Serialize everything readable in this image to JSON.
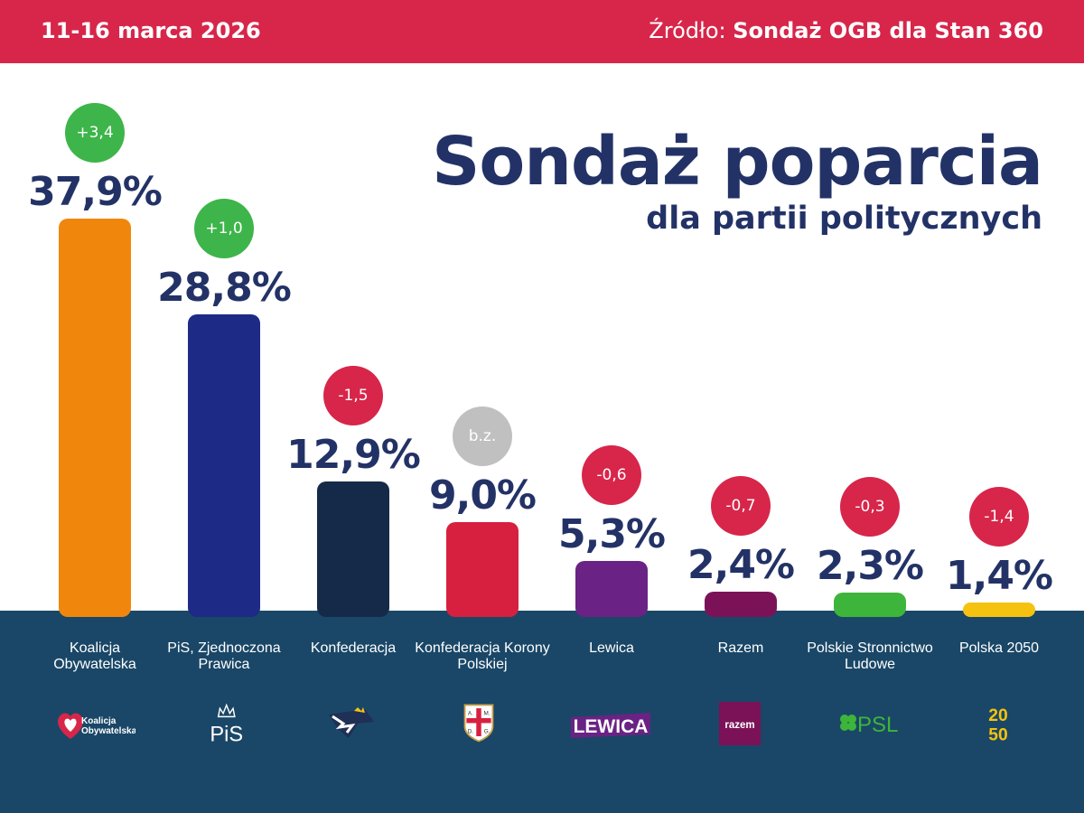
{
  "header": {
    "date": "11-16 marca 2026",
    "source_label": "Źródło:",
    "source_value": "Sondaż OGB dla Stan 360"
  },
  "title": "Sondaż poparcia",
  "subtitle": "dla partii politycznych",
  "colors": {
    "header_bg": "#d7264a",
    "title": "#233266",
    "bottom_panel": "#1a4767",
    "change_up": "#3db54a",
    "change_down": "#d7264a",
    "change_none": "#c0c0c0"
  },
  "chart_data": {
    "type": "bar",
    "title": "Sondaż poparcia",
    "subtitle": "dla partii politycznych",
    "unit": "%",
    "ylim": [
      0,
      37.9
    ],
    "categories": [
      "Koalicja Obywatelska",
      "PiS, Zjednoczona Prawica",
      "Konfederacja",
      "Konfederacja Korony Polskiej",
      "Lewica",
      "Razem",
      "Polskie Stronnictwo Ludowe",
      "Polska 2050"
    ],
    "values": [
      37.9,
      28.8,
      12.9,
      9.0,
      5.3,
      2.4,
      2.3,
      1.4
    ],
    "value_labels": [
      "37,9%",
      "28,8%",
      "12,9%",
      "9,0%",
      "5,3%",
      "2,4%",
      "2,3%",
      "1,4%"
    ],
    "changes": [
      "+3,4",
      "+1,0",
      "-1,5",
      "b.z.",
      "-0,6",
      "-0,7",
      "-0,3",
      "-1,4"
    ],
    "change_direction": [
      "up",
      "up",
      "down",
      "none",
      "down",
      "down",
      "down",
      "down"
    ],
    "bar_colors": [
      "#f0870c",
      "#1d2a86",
      "#152a48",
      "#d7203f",
      "#6a2284",
      "#7b1257",
      "#3db53a",
      "#f5c30f"
    ],
    "logo_icons": [
      "ko-heart-logo",
      "pis-crown-logo",
      "konfederacja-eagle-logo",
      "kkp-shield-logo",
      "lewica-logo",
      "razem-logo",
      "psl-clover-logo",
      "polska-2050-logo"
    ]
  },
  "logos": {
    "ko_line1": "Koalicja",
    "ko_line2": "Obywatelska",
    "pis": "PiS",
    "kkp_a": "A.",
    "kkp_m": "M.",
    "kkp_d": "D.",
    "kkp_g": "G.",
    "lewica": "LEWICA",
    "razem": "razem",
    "psl": "PSL",
    "p2050_a": "20",
    "p2050_b": "50"
  }
}
